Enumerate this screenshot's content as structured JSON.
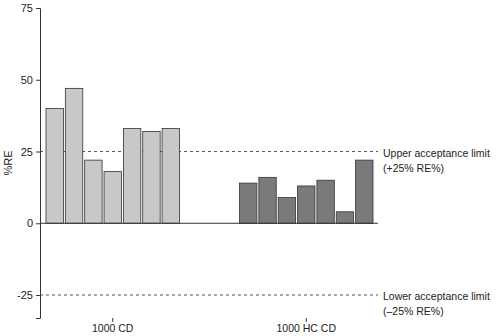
{
  "chart_data": {
    "type": "bar",
    "y_label": "%RE",
    "categories": [
      null,
      null,
      null,
      "1000 CD",
      null,
      null,
      null,
      null,
      null,
      null,
      "1000 HC CD",
      null,
      null,
      null
    ],
    "values": [
      40,
      47,
      22,
      18,
      33,
      32,
      33,
      14,
      16,
      9,
      13,
      15,
      4,
      22
    ],
    "colors": [
      "#c8c8c8",
      "#c8c8c8",
      "#c8c8c8",
      "#c8c8c8",
      "#c8c8c8",
      "#c8c8c8",
      "#c8c8c8",
      "#7a7a7a",
      "#7a7a7a",
      "#7a7a7a",
      "#7a7a7a",
      "#7a7a7a",
      "#7a7a7a",
      "#7a7a7a"
    ],
    "ylim": [
      -33,
      75
    ],
    "yticks": [
      -25,
      0,
      25,
      50,
      75
    ],
    "annotations": [
      {
        "y": 25,
        "text": [
          "Upper acceptance limit",
          "(+25% RE%)"
        ]
      },
      {
        "y": -25,
        "text": [
          "Lower acceptance limit",
          "(–25% RE%)"
        ]
      }
    ]
  }
}
